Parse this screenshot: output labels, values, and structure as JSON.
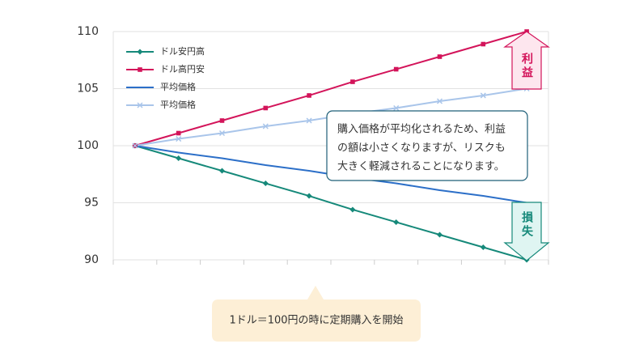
{
  "chart_data": {
    "type": "line",
    "categories": [
      null,
      null,
      null,
      null,
      null,
      null,
      null,
      null,
      null,
      null
    ],
    "series": [
      {
        "name": "ドル安円高",
        "color": "#16897a",
        "marker": "diamond",
        "values": [
          100,
          98.9,
          97.8,
          96.7,
          95.6,
          94.4,
          93.3,
          92.2,
          91.1,
          90
        ]
      },
      {
        "name": "ドル高円安",
        "color": "#d3145a",
        "marker": "square",
        "values": [
          100,
          101.1,
          102.2,
          103.3,
          104.4,
          105.6,
          106.7,
          107.8,
          108.9,
          110
        ]
      },
      {
        "name": "平均価格",
        "color": "#2c6fc8",
        "marker": "none",
        "values": [
          100,
          99.4,
          98.9,
          98.3,
          97.8,
          97.2,
          96.7,
          96.1,
          95.6,
          95
        ]
      },
      {
        "name": "平均価格",
        "color": "#a9c5ea",
        "marker": "x",
        "values": [
          100,
          100.6,
          101.1,
          101.7,
          102.2,
          102.8,
          103.3,
          103.9,
          104.4,
          105
        ]
      }
    ],
    "ylim": [
      90,
      110
    ],
    "yticks": [
      90,
      95,
      100,
      105,
      110
    ],
    "grid": true,
    "legend": "upper left",
    "annotations": {
      "profit": "利益",
      "loss": "損失",
      "callout": [
        "購入価格が平均化されるため、利益",
        "の額は小さくなりますが、リスクも",
        "大きく軽減されることになります。"
      ],
      "start": "1ドル＝100円の時に定期購入を開始"
    }
  }
}
